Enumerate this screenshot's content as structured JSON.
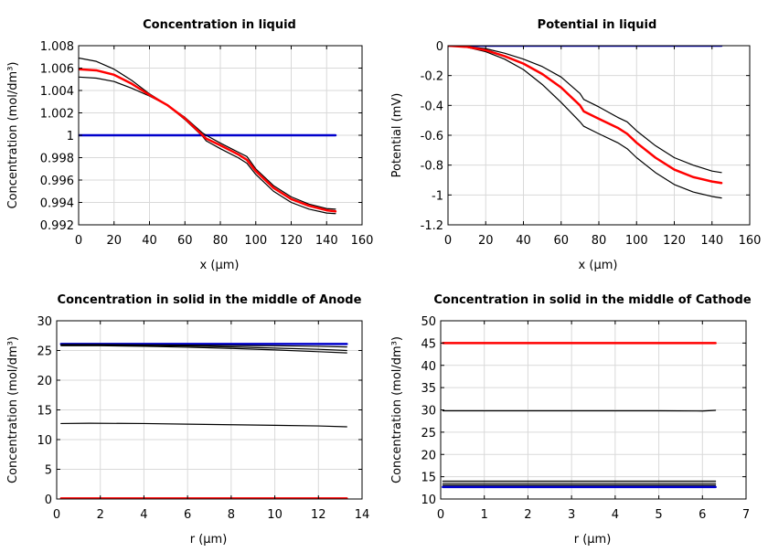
{
  "chart_data": [
    {
      "type": "line",
      "title": "Concentration in liquid",
      "xlabel": "x (µm)",
      "ylabel": "Concentration (mol/dm³)",
      "xlim": [
        0,
        160
      ],
      "ylim": [
        0.992,
        1.008
      ],
      "xticks": [
        0,
        20,
        40,
        60,
        80,
        100,
        120,
        140,
        160
      ],
      "yticks": [
        0.992,
        0.994,
        0.996,
        0.998,
        1,
        1.002,
        1.004,
        1.006,
        1.008
      ],
      "xtick_labels": [
        "0",
        "20",
        "40",
        "60",
        "80",
        "100",
        "120",
        "140",
        "160"
      ],
      "ytick_labels": [
        "0.992",
        "0.994",
        "0.996",
        "0.998",
        "1",
        "1.002",
        "1.004",
        "1.006",
        "1.008"
      ],
      "series": [
        {
          "color": "#0000cc",
          "width": 2.5,
          "x": [
            0,
            145
          ],
          "y": [
            1.0,
            1.0
          ]
        },
        {
          "color": "#000000",
          "width": 1.2,
          "x": [
            0,
            10,
            20,
            30,
            40,
            50,
            60,
            70,
            72,
            80,
            90,
            95,
            100,
            110,
            120,
            130,
            140,
            145
          ],
          "y": [
            1.0069,
            1.0066,
            1.0059,
            1.0049,
            1.0037,
            1.0027,
            1.0014,
            0.9999,
            0.9995,
            0.9988,
            0.998,
            0.9975,
            0.9965,
            0.995,
            0.994,
            0.9934,
            0.99305,
            0.993
          ]
        },
        {
          "color": "#000000",
          "width": 1.2,
          "x": [
            0,
            10,
            20,
            30,
            40,
            50,
            60,
            70,
            72,
            80,
            90,
            95,
            100,
            110,
            120,
            130,
            140,
            145
          ],
          "y": [
            1.0052,
            1.0051,
            1.0048,
            1.0042,
            1.0035,
            1.0027,
            1.0016,
            1.0002,
            1.0,
            0.9993,
            0.9985,
            0.9981,
            0.997,
            0.9955,
            0.9945,
            0.99385,
            0.99345,
            0.9934
          ]
        },
        {
          "color": "#ff0000",
          "width": 2.5,
          "x": [
            0,
            10,
            20,
            30,
            40,
            50,
            60,
            70,
            72,
            80,
            90,
            95,
            100,
            110,
            120,
            130,
            140,
            145
          ],
          "y": [
            1.0059,
            1.0058,
            1.0054,
            1.0046,
            1.0036,
            1.0027,
            1.0015,
            1.0,
            0.9997,
            0.9991,
            0.9983,
            0.9978,
            0.9968,
            0.9953,
            0.9943,
            0.9937,
            0.9933,
            0.9932
          ]
        }
      ]
    },
    {
      "type": "line",
      "title": "Potential in liquid",
      "xlabel": "x (µm)",
      "ylabel": "Potential (mV)",
      "xlim": [
        0,
        160
      ],
      "ylim": [
        -1.2,
        0
      ],
      "xticks": [
        0,
        20,
        40,
        60,
        80,
        100,
        120,
        140,
        160
      ],
      "yticks": [
        -1.2,
        -1,
        -0.8,
        -0.6,
        -0.4,
        -0.2,
        0
      ],
      "xtick_labels": [
        "0",
        "20",
        "40",
        "60",
        "80",
        "100",
        "120",
        "140",
        "160"
      ],
      "ytick_labels": [
        "-1.2",
        "-1",
        "-0.8",
        "-0.6",
        "-0.4",
        "-0.2",
        "0"
      ],
      "series": [
        {
          "color": "#0000cc",
          "width": 2.5,
          "x": [
            0,
            145
          ],
          "y": [
            0,
            0
          ]
        },
        {
          "color": "#000000",
          "width": 1.2,
          "x": [
            0,
            10,
            20,
            30,
            40,
            50,
            60,
            70,
            72,
            80,
            90,
            95,
            100,
            110,
            120,
            130,
            140,
            145
          ],
          "y": [
            0,
            -0.01,
            -0.04,
            -0.09,
            -0.16,
            -0.26,
            -0.38,
            -0.51,
            -0.54,
            -0.59,
            -0.65,
            -0.69,
            -0.75,
            -0.85,
            -0.93,
            -0.98,
            -1.01,
            -1.02
          ]
        },
        {
          "color": "#000000",
          "width": 1.2,
          "x": [
            0,
            10,
            20,
            30,
            40,
            50,
            60,
            70,
            72,
            80,
            90,
            95,
            100,
            110,
            120,
            130,
            140,
            145
          ],
          "y": [
            0,
            -0.005,
            -0.02,
            -0.05,
            -0.09,
            -0.14,
            -0.21,
            -0.32,
            -0.36,
            -0.41,
            -0.48,
            -0.51,
            -0.57,
            -0.67,
            -0.75,
            -0.8,
            -0.84,
            -0.85
          ]
        },
        {
          "color": "#ff0000",
          "width": 2.5,
          "x": [
            0,
            10,
            20,
            30,
            40,
            50,
            60,
            70,
            72,
            80,
            90,
            95,
            100,
            110,
            120,
            130,
            140,
            145
          ],
          "y": [
            0,
            -0.008,
            -0.03,
            -0.07,
            -0.12,
            -0.19,
            -0.28,
            -0.4,
            -0.44,
            -0.49,
            -0.55,
            -0.59,
            -0.65,
            -0.75,
            -0.83,
            -0.88,
            -0.91,
            -0.92
          ]
        }
      ]
    },
    {
      "type": "line",
      "title": "Concentration in solid in the middle of Anode",
      "xlabel": "r (µm)",
      "ylabel": "Concentration (mol/dm³)",
      "xlim": [
        0,
        14
      ],
      "ylim": [
        0,
        30
      ],
      "xticks": [
        0,
        2,
        4,
        6,
        8,
        10,
        12,
        14
      ],
      "yticks": [
        0,
        5,
        10,
        15,
        20,
        25,
        30
      ],
      "xtick_labels": [
        "0",
        "2",
        "4",
        "6",
        "8",
        "10",
        "12",
        "14"
      ],
      "ytick_labels": [
        "0",
        "5",
        "10",
        "15",
        "20",
        "25",
        "30"
      ],
      "series": [
        {
          "color": "#0000cc",
          "width": 2.5,
          "x": [
            0.2,
            13.3
          ],
          "y": [
            26.1,
            26.1
          ]
        },
        {
          "color": "#000000",
          "width": 1.2,
          "x": [
            0.2,
            2,
            4,
            6,
            8,
            10,
            12,
            13.3
          ],
          "y": [
            26.0,
            26.0,
            25.95,
            25.9,
            25.85,
            25.8,
            25.7,
            25.6
          ]
        },
        {
          "color": "#000000",
          "width": 1.2,
          "x": [
            0.2,
            2,
            4,
            6,
            8,
            10,
            12,
            13.3
          ],
          "y": [
            25.9,
            25.9,
            25.85,
            25.75,
            25.6,
            25.4,
            25.2,
            25.0
          ]
        },
        {
          "color": "#000000",
          "width": 1.2,
          "x": [
            0.2,
            2,
            4,
            6,
            8,
            10,
            12,
            13.3
          ],
          "y": [
            25.8,
            25.8,
            25.7,
            25.55,
            25.35,
            25.1,
            24.8,
            24.6
          ]
        },
        {
          "color": "#000000",
          "width": 1.2,
          "x": [
            0.2,
            1.5,
            4,
            6,
            8,
            10,
            12,
            13.3
          ],
          "y": [
            12.7,
            12.75,
            12.7,
            12.6,
            12.5,
            12.4,
            12.3,
            12.15
          ]
        },
        {
          "color": "#ff0000",
          "width": 2.5,
          "x": [
            0.2,
            13.3
          ],
          "y": [
            0.1,
            0.1
          ]
        }
      ]
    },
    {
      "type": "line",
      "title": "Concentration in solid in the middle of Cathode",
      "xlabel": "r (µm)",
      "ylabel": "Concentration (mol/dm³)",
      "xlim": [
        0,
        7
      ],
      "ylim": [
        10,
        50
      ],
      "xticks": [
        0,
        1,
        2,
        3,
        4,
        5,
        6,
        7
      ],
      "yticks": [
        10,
        15,
        20,
        25,
        30,
        35,
        40,
        45,
        50
      ],
      "xtick_labels": [
        "0",
        "1",
        "2",
        "3",
        "4",
        "5",
        "6",
        "7"
      ],
      "ytick_labels": [
        "10",
        "15",
        "20",
        "25",
        "30",
        "35",
        "40",
        "45",
        "50"
      ],
      "series": [
        {
          "color": "#ff0000",
          "width": 2.5,
          "x": [
            0.05,
            6.3
          ],
          "y": [
            45.0,
            45.0
          ]
        },
        {
          "color": "#000000",
          "width": 1.2,
          "x": [
            0.05,
            1,
            3,
            5,
            6.0,
            6.3
          ],
          "y": [
            29.8,
            29.8,
            29.8,
            29.8,
            29.75,
            29.9
          ]
        },
        {
          "color": "#000000",
          "width": 1.2,
          "x": [
            0.05,
            6.3
          ],
          "y": [
            14.0,
            14.0
          ]
        },
        {
          "color": "#000000",
          "width": 1.2,
          "x": [
            0.05,
            6.3
          ],
          "y": [
            13.5,
            13.5
          ]
        },
        {
          "color": "#000000",
          "width": 1.2,
          "x": [
            0.05,
            6.3
          ],
          "y": [
            13.1,
            13.1
          ]
        },
        {
          "color": "#0000cc",
          "width": 2.5,
          "x": [
            0.05,
            6.3
          ],
          "y": [
            12.7,
            12.7
          ]
        }
      ]
    }
  ]
}
